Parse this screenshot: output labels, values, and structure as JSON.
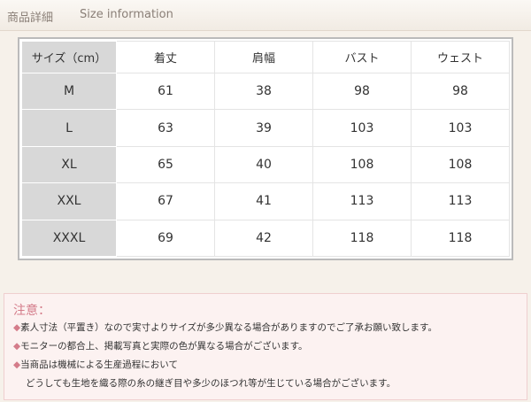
{
  "header": {
    "title": "商品詳細",
    "subtitle": "Size information"
  },
  "table": {
    "header": [
      "サイズ（cm）",
      "着丈",
      "肩幅",
      "バスト",
      "ウェスト"
    ],
    "rows": [
      [
        "M",
        61,
        38,
        98,
        98
      ],
      [
        "L",
        63,
        39,
        103,
        103
      ],
      [
        "XL",
        65,
        40,
        108,
        108
      ],
      [
        "XXL",
        67,
        41,
        113,
        113
      ],
      [
        "XXXL",
        69,
        42,
        118,
        118
      ]
    ]
  },
  "notes": {
    "title": "注意：",
    "items": [
      "素人寸法（平置き）なので実寸よりサイズが多少異なる場合がありますのでご了承お願い致します。",
      "モニターの都合上、掲載写真と実際の色が異なる場合がございます。",
      "当商品は機械による生産過程において"
    ],
    "continuation": "どうしても生地を織る際の糸の継ぎ目や多少のほつれ等が生じている場合がございます。"
  }
}
